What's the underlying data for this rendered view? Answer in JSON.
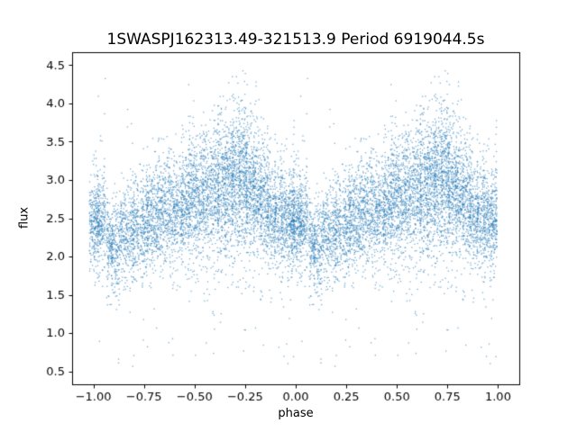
{
  "chart_data": {
    "type": "scatter",
    "title": "1SWASPJ162313.49-321513.9 Period 6919044.5s",
    "xlabel": "phase",
    "ylabel": "flux",
    "xlim": [
      -1.105,
      1.105
    ],
    "ylim": [
      0.33,
      4.67
    ],
    "xticks": {
      "values": [
        -1.0,
        -0.75,
        -0.5,
        -0.25,
        0.0,
        0.25,
        0.5,
        0.75,
        1.0
      ],
      "labels": [
        "−1.00",
        "−0.75",
        "−0.50",
        "−0.25",
        "0.00",
        "0.25",
        "0.50",
        "0.75",
        "1.00"
      ]
    },
    "yticks": {
      "values": [
        0.5,
        1.0,
        1.5,
        2.0,
        2.5,
        3.0,
        3.5,
        4.0,
        4.5
      ],
      "labels": [
        "0.5",
        "1.0",
        "1.5",
        "2.0",
        "2.5",
        "3.0",
        "3.5",
        "4.0",
        "4.5"
      ]
    },
    "marker_color": "#1f77b4",
    "marker_alpha": 0.6,
    "marker_size": 1.3,
    "seed": 42,
    "fold_note": "phase-folded light curve; each band [phase, half_width, n, flux_mean, flux_std, flux_min, flux_max] is plotted at phase p and p-1",
    "bands": [
      [
        0.005,
        0.025,
        260,
        2.45,
        0.28,
        1.6,
        3.4
      ],
      [
        0.04,
        0.02,
        200,
        2.5,
        0.3,
        1.6,
        4.4
      ],
      [
        0.08,
        0.015,
        140,
        2.15,
        0.25,
        1.3,
        2.9
      ],
      [
        0.11,
        0.02,
        170,
        2.1,
        0.3,
        1.2,
        3.0
      ],
      [
        0.145,
        0.015,
        130,
        2.25,
        0.28,
        1.5,
        3.2
      ],
      [
        0.18,
        0.02,
        160,
        2.3,
        0.3,
        1.5,
        4.3
      ],
      [
        0.21,
        0.015,
        150,
        2.35,
        0.3,
        1.6,
        3.3
      ],
      [
        0.25,
        0.02,
        200,
        2.45,
        0.32,
        1.6,
        3.5
      ],
      [
        0.285,
        0.02,
        200,
        2.5,
        0.33,
        1.5,
        3.6
      ],
      [
        0.32,
        0.015,
        170,
        2.55,
        0.35,
        1.5,
        4.0
      ],
      [
        0.355,
        0.02,
        190,
        2.6,
        0.33,
        1.6,
        3.7
      ],
      [
        0.39,
        0.015,
        160,
        2.55,
        0.3,
        1.5,
        3.5
      ],
      [
        0.425,
        0.02,
        180,
        2.6,
        0.33,
        1.4,
        3.6
      ],
      [
        0.455,
        0.02,
        190,
        2.7,
        0.35,
        1.6,
        3.8
      ],
      [
        0.49,
        0.02,
        230,
        2.8,
        0.4,
        1.5,
        4.25
      ],
      [
        0.525,
        0.02,
        210,
        2.75,
        0.38,
        1.5,
        3.9
      ],
      [
        0.56,
        0.02,
        210,
        2.8,
        0.38,
        1.4,
        3.9
      ],
      [
        0.6,
        0.02,
        230,
        2.85,
        0.4,
        1.5,
        4.0
      ],
      [
        0.635,
        0.02,
        240,
        2.9,
        0.42,
        1.5,
        4.1
      ],
      [
        0.67,
        0.02,
        260,
        2.95,
        0.45,
        1.5,
        4.3
      ],
      [
        0.705,
        0.02,
        280,
        3.0,
        0.45,
        1.6,
        4.35
      ],
      [
        0.74,
        0.02,
        280,
        3.0,
        0.45,
        1.6,
        4.45
      ],
      [
        0.775,
        0.02,
        250,
        2.9,
        0.42,
        1.5,
        4.0
      ],
      [
        0.81,
        0.02,
        240,
        2.8,
        0.4,
        1.4,
        4.3
      ],
      [
        0.845,
        0.02,
        220,
        2.7,
        0.38,
        1.4,
        3.8
      ],
      [
        0.88,
        0.02,
        200,
        2.6,
        0.35,
        1.3,
        3.6
      ],
      [
        0.915,
        0.02,
        190,
        2.5,
        0.33,
        1.4,
        3.5
      ],
      [
        0.95,
        0.02,
        200,
        2.45,
        0.3,
        1.5,
        3.6
      ],
      [
        0.98,
        0.015,
        180,
        2.5,
        0.3,
        1.6,
        3.9
      ]
    ],
    "outliers": {
      "n": 45,
      "flux_lo": 0.5,
      "flux_hi": 1.65
    }
  },
  "figure": {
    "background": "#ffffff",
    "axes_color": "#000000",
    "tick_label_color": "#000000"
  }
}
